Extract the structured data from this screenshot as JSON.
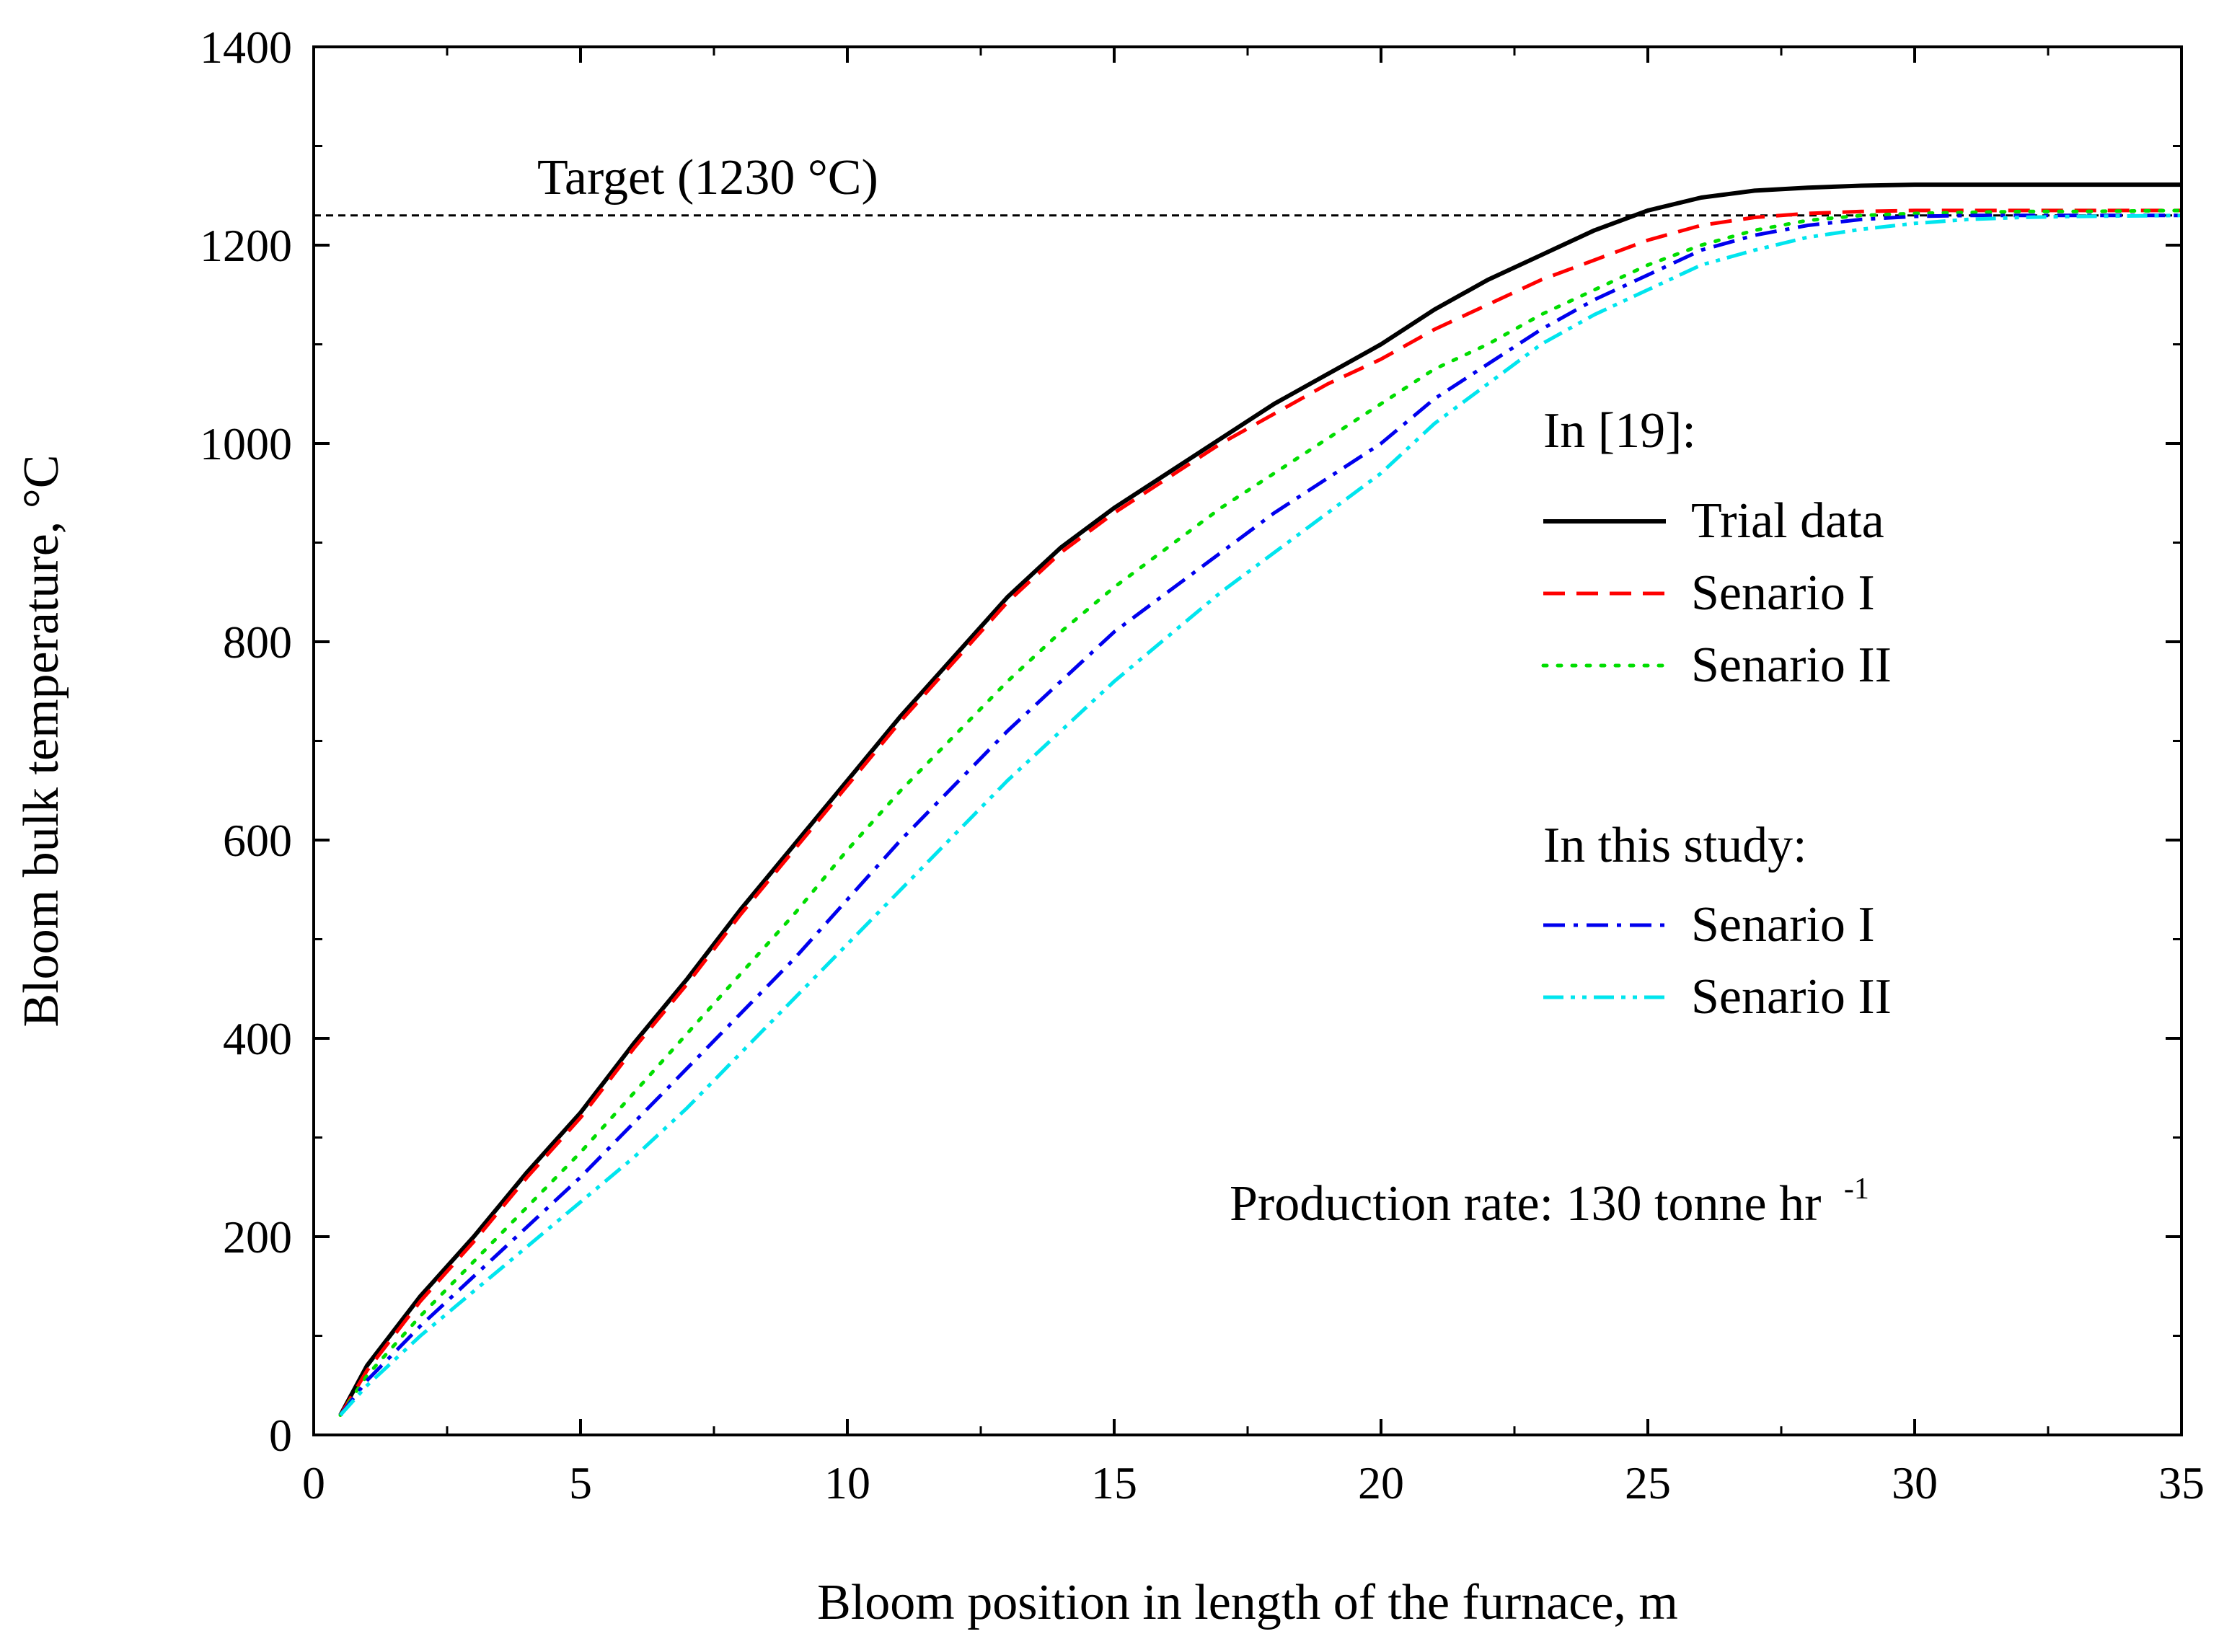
{
  "chart_data": {
    "type": "line",
    "xlabel": "Bloom position in length of the furnace, m",
    "ylabel": "Bloom bulk temperature, °C",
    "xlim": [
      0,
      35
    ],
    "ylim": [
      0,
      1400
    ],
    "xticks": [
      0,
      5,
      10,
      15,
      20,
      25,
      30,
      35
    ],
    "yticks": [
      0,
      200,
      400,
      600,
      800,
      1000,
      1200,
      1400
    ],
    "grid": false,
    "target": {
      "label": "Target (1230 °C)",
      "value": 1230
    },
    "annotation": {
      "text": "Production rate: 130 tonne hr",
      "superscript": "-1"
    },
    "legend": {
      "placement": "right",
      "groups": [
        {
          "title": "In [19]:",
          "entries": [
            "Trial data",
            "Senario I",
            "Senario II"
          ]
        },
        {
          "title": "In this study:",
          "entries": [
            "Senario I",
            "Senario II"
          ]
        }
      ]
    },
    "series": [
      {
        "name": "Trial data",
        "group": "In [19]:",
        "color": "#000000",
        "style": "solid",
        "x": [
          0.5,
          1,
          2,
          3,
          4,
          5,
          6,
          7,
          8,
          9,
          10,
          11,
          12,
          13,
          14,
          15,
          16,
          17,
          18,
          19,
          20,
          21,
          22,
          23,
          24,
          25,
          26,
          27,
          28,
          29,
          30,
          31,
          32,
          33,
          35
        ],
        "y": [
          20,
          70,
          140,
          200,
          265,
          325,
          395,
          460,
          530,
          595,
          660,
          725,
          785,
          845,
          895,
          935,
          970,
          1005,
          1040,
          1070,
          1100,
          1135,
          1165,
          1190,
          1215,
          1235,
          1248,
          1255,
          1258,
          1260,
          1261,
          1261,
          1261,
          1261,
          1261
        ]
      },
      {
        "name": "Senario I",
        "group": "In [19]:",
        "color": "#ff0000",
        "style": "dashed",
        "x": [
          0.5,
          1,
          2,
          3,
          4,
          5,
          6,
          7,
          8,
          9,
          10,
          11,
          12,
          13,
          14,
          15,
          16,
          17,
          18,
          19,
          20,
          21,
          22,
          23,
          24,
          25,
          26,
          27,
          28,
          29,
          30,
          31,
          32,
          33,
          35
        ],
        "y": [
          20,
          65,
          135,
          195,
          260,
          320,
          390,
          455,
          525,
          590,
          655,
          720,
          780,
          840,
          890,
          930,
          965,
          1000,
          1030,
          1060,
          1085,
          1115,
          1140,
          1165,
          1185,
          1205,
          1220,
          1228,
          1232,
          1234,
          1235,
          1235,
          1235,
          1235,
          1235
        ]
      },
      {
        "name": "Senario II",
        "group": "In [19]:",
        "color": "#00dd00",
        "style": "dotted",
        "x": [
          0.5,
          1,
          2,
          3,
          4,
          5,
          6,
          7,
          8,
          9,
          10,
          11,
          12,
          13,
          14,
          15,
          16,
          17,
          18,
          19,
          20,
          21,
          22,
          23,
          24,
          25,
          26,
          27,
          28,
          29,
          30,
          31,
          32,
          33,
          35
        ],
        "y": [
          20,
          60,
          120,
          175,
          230,
          285,
          345,
          405,
          465,
          525,
          590,
          650,
          705,
          760,
          810,
          855,
          895,
          935,
          970,
          1005,
          1040,
          1075,
          1100,
          1130,
          1155,
          1180,
          1200,
          1215,
          1225,
          1230,
          1232,
          1233,
          1234,
          1234,
          1235
        ]
      },
      {
        "name": "Senario I",
        "group": "In this study:",
        "color": "#0000ee",
        "style": "dashdot",
        "x": [
          0.5,
          1,
          2,
          3,
          4,
          5,
          6,
          7,
          8,
          9,
          10,
          11,
          12,
          13,
          14,
          15,
          16,
          17,
          18,
          19,
          20,
          21,
          22,
          23,
          24,
          25,
          26,
          27,
          28,
          29,
          30,
          31,
          32,
          33,
          35
        ],
        "y": [
          20,
          55,
          110,
          160,
          210,
          260,
          315,
          370,
          425,
          480,
          540,
          600,
          655,
          710,
          760,
          810,
          850,
          890,
          930,
          965,
          1000,
          1045,
          1080,
          1115,
          1145,
          1170,
          1195,
          1210,
          1220,
          1226,
          1229,
          1230,
          1230,
          1230,
          1230
        ]
      },
      {
        "name": "Senario II",
        "group": "In this study:",
        "color": "#00e5ee",
        "style": "dashdotdot",
        "x": [
          0.5,
          1,
          2,
          3,
          4,
          5,
          6,
          7,
          8,
          9,
          10,
          11,
          12,
          13,
          14,
          15,
          16,
          17,
          18,
          19,
          20,
          21,
          22,
          23,
          24,
          25,
          26,
          27,
          28,
          29,
          30,
          31,
          32,
          33,
          35
        ],
        "y": [
          20,
          50,
          100,
          145,
          190,
          235,
          280,
          330,
          385,
          440,
          495,
          550,
          605,
          660,
          710,
          760,
          805,
          850,
          890,
          930,
          970,
          1020,
          1060,
          1100,
          1130,
          1155,
          1180,
          1195,
          1208,
          1216,
          1222,
          1226,
          1228,
          1229,
          1230
        ]
      }
    ]
  }
}
